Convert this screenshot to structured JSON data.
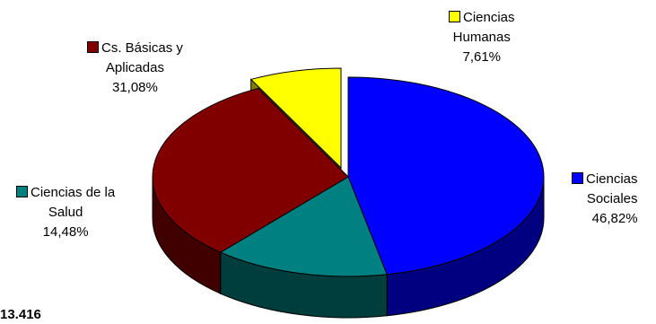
{
  "chart_data": {
    "type": "pie",
    "style": "3d-exploded",
    "slices": [
      {
        "label_lines": [
          "Ciencias",
          "Sociales"
        ],
        "value_text": "46,82%",
        "value": 46.82,
        "color": "#0000ff",
        "side_color": "#000080"
      },
      {
        "label_lines": [
          "Ciencias de la",
          "Salud"
        ],
        "value_text": "14,48%",
        "value": 14.48,
        "color": "#008080",
        "side_color": "#003d3d"
      },
      {
        "label_lines": [
          "Cs. Básicas y",
          "Aplicadas"
        ],
        "value_text": "31,08%",
        "value": 31.08,
        "color": "#800000",
        "side_color": "#400000"
      },
      {
        "label_lines": [
          "Ciencias",
          "Humanas"
        ],
        "value_text": "7,61%",
        "value": 7.61,
        "color": "#ffff00",
        "side_color": "#808000"
      }
    ],
    "total_text": "13.416",
    "legend": "inline-labels-with-swatches"
  }
}
